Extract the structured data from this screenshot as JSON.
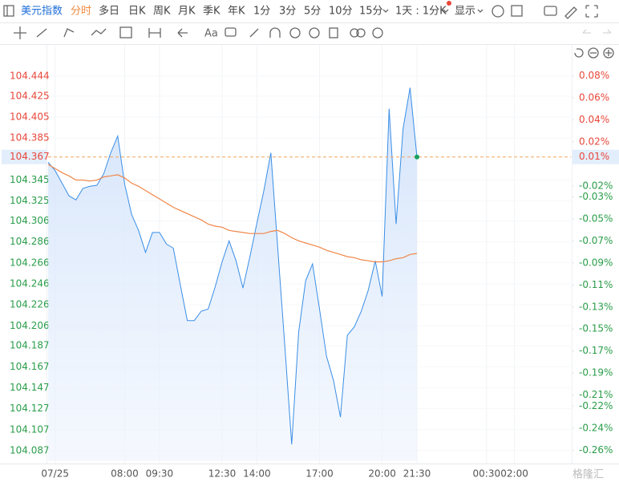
{
  "toolbar": {
    "symbol": "美元指数",
    "tabs": [
      "分时",
      "多日",
      "日K",
      "周K",
      "月K",
      "季K",
      "年K",
      "1分",
      "3分",
      "5分",
      "10分",
      "15分"
    ],
    "period": "1天 : 1分K",
    "display": "显示"
  },
  "watermark": "格隆汇",
  "chart_data": {
    "type": "line",
    "categories": [
      null,
      "07/25",
      null,
      null,
      null,
      null,
      null,
      null,
      null,
      null,
      null,
      "08:00",
      null,
      null,
      null,
      null,
      "09:30",
      null,
      null,
      null,
      null,
      null,
      null,
      null,
      null,
      "12:30",
      null,
      null,
      null,
      null,
      "14:00",
      null,
      null,
      null,
      null,
      null,
      null,
      null,
      null,
      "17:00",
      null,
      null,
      null,
      null,
      null,
      null,
      null,
      null,
      "20:00",
      null,
      null,
      null,
      null,
      "21:30",
      null,
      null,
      null,
      null,
      null,
      null,
      null,
      null,
      null,
      "00:30",
      null,
      null,
      null,
      "02:00",
      null,
      null,
      null,
      null,
      null,
      null,
      null,
      null
    ],
    "series": [
      {
        "color": "#3a8ee6",
        "values": [
          104.362,
          104.354,
          104.342,
          104.33,
          104.326,
          104.337,
          104.339,
          104.34,
          104.351,
          104.371,
          104.387,
          104.341,
          104.312,
          104.297,
          104.276,
          104.295,
          104.295,
          104.284,
          104.28,
          104.245,
          104.211,
          104.211,
          104.22,
          104.222,
          104.243,
          104.267,
          104.287,
          104.268,
          104.242,
          104.272,
          104.304,
          104.335,
          104.371,
          104.28,
          104.188,
          104.093,
          104.2,
          104.249,
          104.265,
          104.222,
          104.177,
          104.154,
          104.119,
          104.197,
          104.205,
          104.22,
          104.24,
          104.268,
          104.234,
          104.413,
          104.303,
          104.394,
          104.433,
          104.367,
          null,
          null,
          null,
          null,
          null,
          null,
          null,
          null,
          null,
          null,
          null,
          null,
          null,
          null,
          null,
          null,
          null,
          null,
          null,
          null,
          null,
          null
        ]
      },
      {
        "color": "#f0874a",
        "values": [
          104.36,
          104.356,
          104.352,
          104.349,
          104.345,
          104.345,
          104.344,
          104.345,
          104.348,
          104.349,
          104.35,
          104.347,
          104.342,
          104.339,
          104.335,
          104.331,
          104.327,
          104.323,
          104.319,
          104.316,
          104.313,
          104.31,
          104.307,
          104.303,
          104.301,
          104.3,
          104.297,
          104.296,
          104.295,
          104.294,
          104.294,
          104.294,
          104.296,
          104.297,
          104.294,
          104.29,
          104.287,
          104.285,
          104.283,
          104.281,
          104.278,
          104.276,
          104.274,
          104.272,
          104.271,
          104.269,
          104.268,
          104.267,
          104.267,
          104.268,
          104.27,
          104.271,
          104.274,
          104.275,
          null,
          null,
          null,
          null,
          null,
          null,
          null,
          null,
          null,
          null,
          null,
          null,
          null,
          null,
          null,
          null,
          null,
          null,
          null,
          null,
          null,
          null
        ]
      }
    ],
    "ylim": [
      104.077,
      104.457
    ],
    "yticks": [
      104.444,
      104.425,
      104.405,
      104.385,
      104.345,
      104.325,
      104.306,
      104.286,
      104.266,
      104.246,
      104.226,
      104.206,
      104.187,
      104.167,
      104.147,
      104.127,
      104.107,
      104.087
    ],
    "y2lim": [
      -0.27,
      0.092
    ],
    "y2ticks": [
      {
        "value": 0.08,
        "label": "0.08%"
      },
      {
        "value": 0.06,
        "label": "0.06%"
      },
      {
        "value": 0.04,
        "label": "0.04%"
      },
      {
        "value": 0.02,
        "label": "0.02%"
      },
      {
        "value": -0.02,
        "label": "-0.02%"
      },
      {
        "value": -0.03,
        "label": "-0.03%"
      },
      {
        "value": -0.05,
        "label": "-0.05%"
      },
      {
        "value": -0.07,
        "label": "-0.07%"
      },
      {
        "value": -0.09,
        "label": "-0.09%"
      },
      {
        "value": -0.11,
        "label": "-0.11%"
      },
      {
        "value": -0.13,
        "label": "-0.13%"
      },
      {
        "value": -0.15,
        "label": "-0.15%"
      },
      {
        "value": -0.17,
        "label": "-0.17%"
      },
      {
        "value": -0.19,
        "label": "-0.19%"
      },
      {
        "value": -0.21,
        "label": "-0.21%"
      },
      {
        "value": -0.22,
        "label": "-0.22%"
      },
      {
        "value": -0.24,
        "label": "-0.24%"
      },
      {
        "value": -0.26,
        "label": "-0.26%"
      }
    ],
    "current": {
      "price": 104.367,
      "change": {
        "value": 0.01,
        "label": "0.01%"
      }
    },
    "grid": true
  }
}
